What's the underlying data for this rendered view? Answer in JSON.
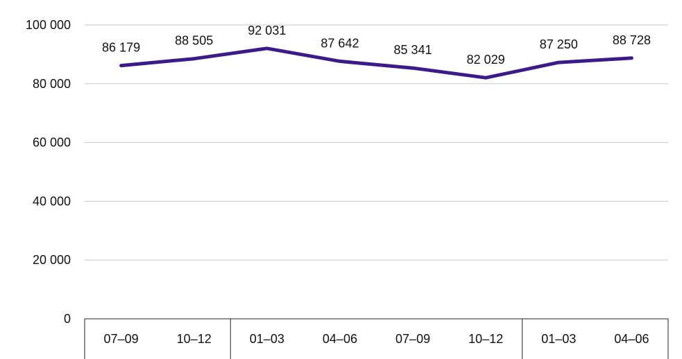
{
  "chart_data": {
    "type": "line",
    "title": "",
    "xlabel": "",
    "ylabel": "",
    "categories": [
      "07–09",
      "10–12",
      "01–03",
      "04–06",
      "07–09",
      "10–12",
      "01–03",
      "04–06"
    ],
    "series": [
      {
        "values": [
          86179,
          88505,
          92031,
          87642,
          85341,
          82029,
          87250,
          88728
        ],
        "labels": [
          "86 179",
          "88 505",
          "92 031",
          "87 642",
          "85 341",
          "82 029",
          "87 250",
          "88 728"
        ]
      }
    ],
    "ylim": [
      0,
      100000
    ],
    "yticks": [
      0,
      20000,
      40000,
      60000,
      80000,
      100000
    ],
    "ytick_labels": [
      "0",
      "20 000",
      "40 000",
      "60 000",
      "80 000",
      "100 000"
    ],
    "grid": true,
    "line_color": "#3d1a8a",
    "grid_color": "#c8c8c8"
  }
}
